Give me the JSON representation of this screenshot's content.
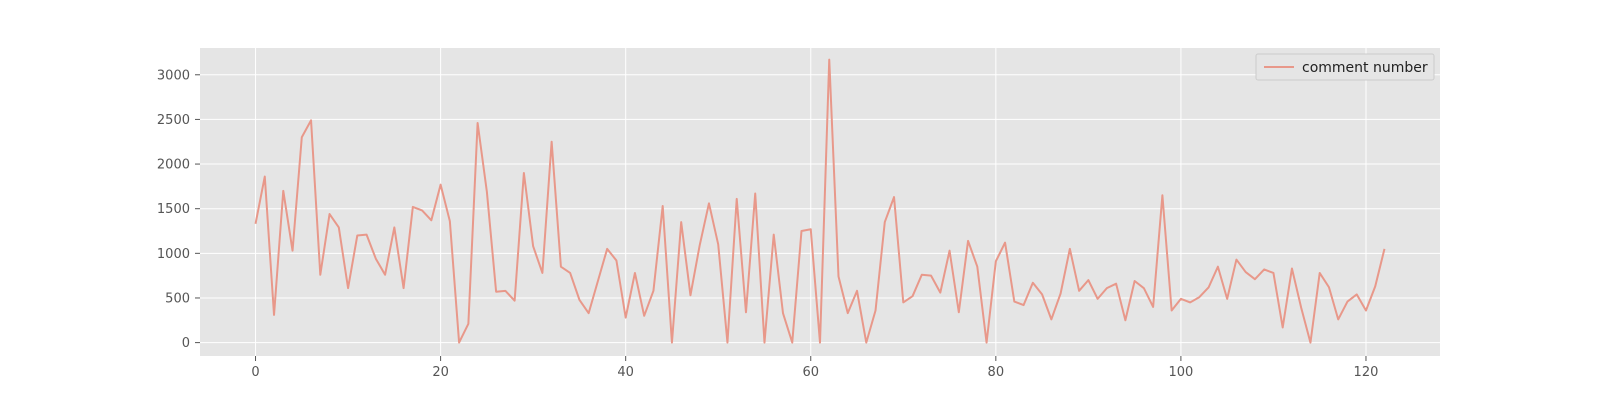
{
  "chart_data": {
    "type": "line",
    "title": "",
    "xlabel": "",
    "ylabel": "",
    "xlim": [
      -6,
      128
    ],
    "ylim": [
      -150,
      3300
    ],
    "x_ticks": [
      0,
      20,
      40,
      60,
      80,
      100,
      120
    ],
    "x_tick_labels": [
      "0",
      "20",
      "40",
      "60",
      "80",
      "100",
      "120"
    ],
    "y_ticks": [
      0,
      500,
      1000,
      1500,
      2000,
      2500,
      3000
    ],
    "y_tick_labels": [
      "0",
      "500",
      "1000",
      "1500",
      "2000",
      "2500",
      "3000"
    ],
    "grid": true,
    "legend_position": "top-right",
    "series": [
      {
        "name": "comment number",
        "color": "#E8988A",
        "values": [
          1330,
          1860,
          310,
          1700,
          1030,
          2300,
          2490,
          760,
          1440,
          1290,
          610,
          1200,
          1210,
          940,
          760,
          1290,
          610,
          1520,
          1480,
          1370,
          1770,
          1360,
          0,
          210,
          2460,
          1690,
          570,
          580,
          470,
          1900,
          1080,
          780,
          2250,
          850,
          780,
          480,
          330,
          690,
          1050,
          920,
          280,
          780,
          300,
          580,
          1530,
          0,
          1350,
          530,
          1090,
          1560,
          1100,
          0,
          1610,
          340,
          1670,
          0,
          1210,
          330,
          0,
          1250,
          1270,
          0,
          3170,
          740,
          330,
          580,
          0,
          360,
          1350,
          1630,
          450,
          520,
          760,
          750,
          560,
          1030,
          340,
          1140,
          850,
          0,
          910,
          1120,
          460,
          420,
          670,
          540,
          260,
          550,
          1050,
          580,
          700,
          490,
          610,
          660,
          250,
          690,
          610,
          400,
          1650,
          360,
          490,
          450,
          510,
          620,
          850,
          490,
          930,
          790,
          710,
          820,
          780,
          170,
          830,
          390,
          0,
          780,
          620,
          260,
          460,
          540,
          360,
          630,
          1050
        ]
      }
    ]
  }
}
